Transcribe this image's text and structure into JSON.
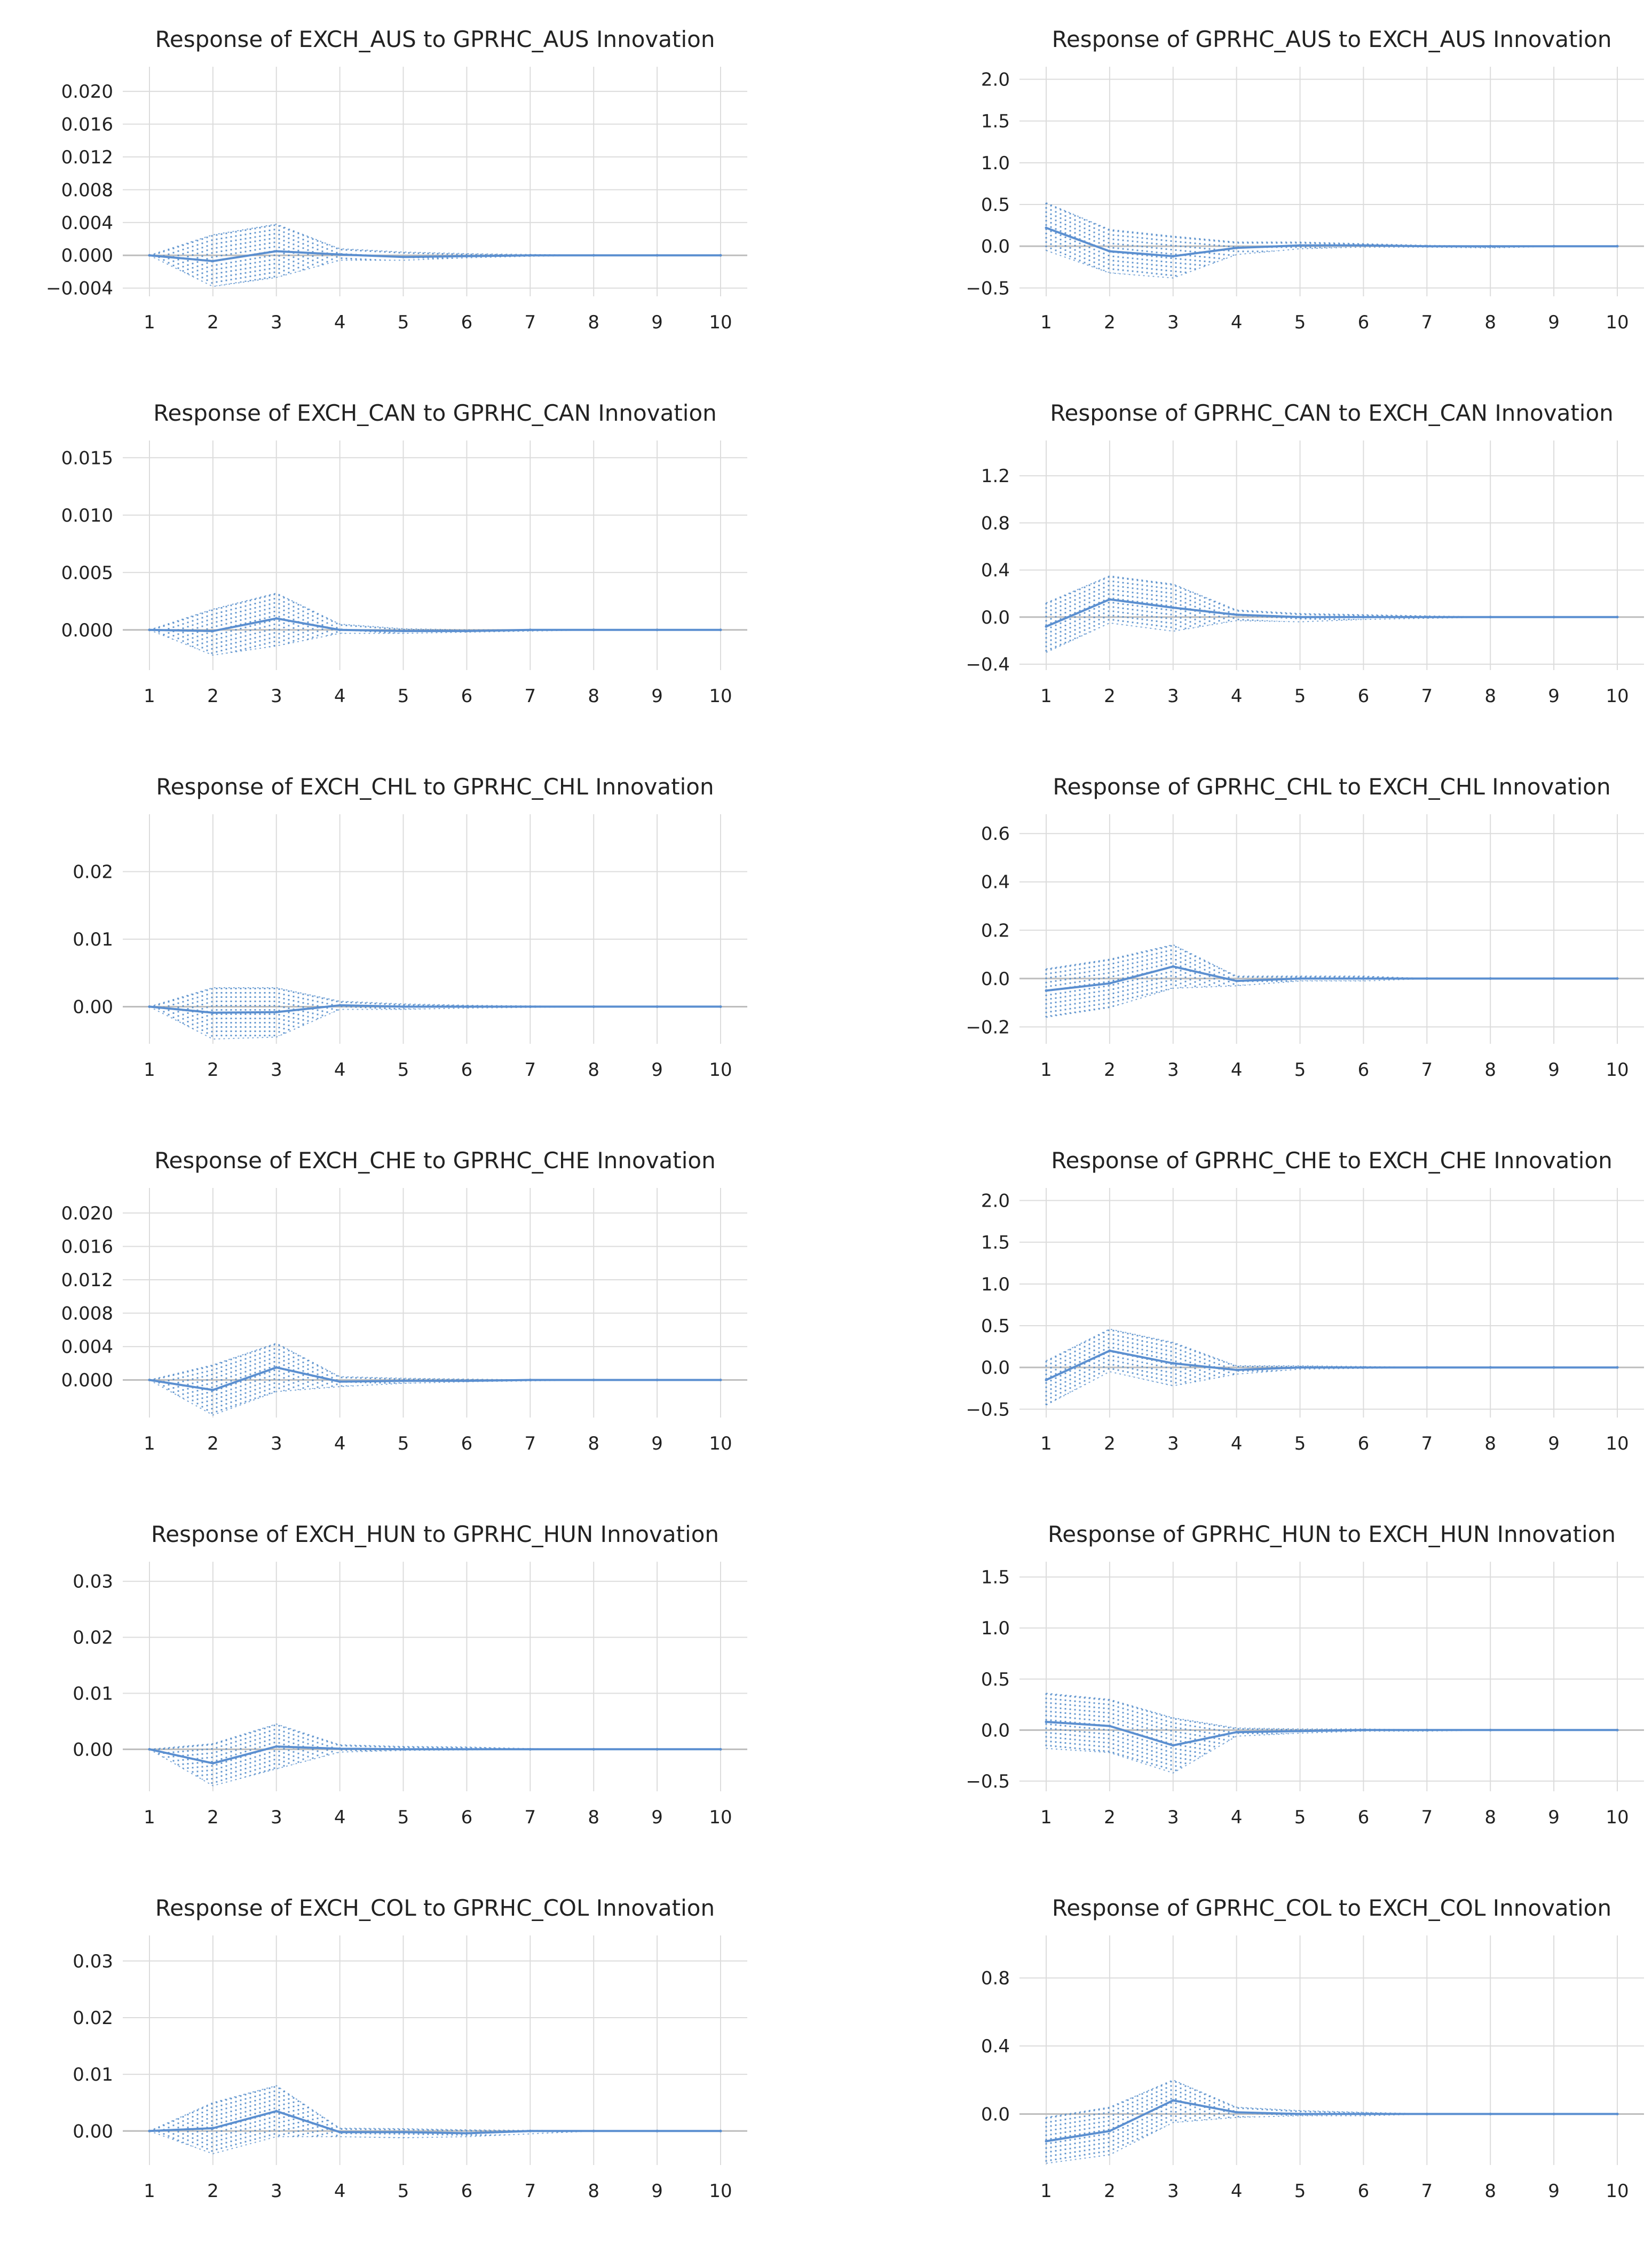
{
  "figure": {
    "colors": {
      "line": "#5b8fd0",
      "band": "#4a86c8",
      "grid": "#dcdcdc",
      "axis": "#bdbdbd"
    }
  },
  "chart_data": [
    {
      "type": "line",
      "title": "Response of EXCH_AUS to GPRHC_AUS Innovation",
      "x": [
        1,
        2,
        3,
        4,
        5,
        6,
        7,
        8,
        9,
        10
      ],
      "xticks": [
        "1",
        "2",
        "3",
        "4",
        "5",
        "6",
        "7",
        "8",
        "9",
        "10"
      ],
      "yticks": [
        -0.004,
        0.0,
        0.004,
        0.008,
        0.012,
        0.016,
        0.02
      ],
      "ytick_labels": [
        "−0.004",
        "0.000",
        "0.004",
        "0.008",
        "0.012",
        "0.016",
        "0.020"
      ],
      "ylim": [
        -0.005,
        0.023
      ],
      "series": [
        {
          "name": "response",
          "values": [
            0.0,
            -0.0007,
            0.0005,
            0.0001,
            -0.0002,
            -0.0001,
            0.0,
            0.0,
            0.0,
            0.0
          ]
        },
        {
          "name": "upper",
          "values": [
            0.0,
            0.0025,
            0.0038,
            0.0008,
            0.0004,
            0.0002,
            0.0001,
            0.0,
            0.0,
            0.0
          ]
        },
        {
          "name": "lower",
          "values": [
            0.0,
            -0.0038,
            -0.0027,
            -0.0006,
            -0.0006,
            -0.0003,
            -0.0001,
            0.0,
            0.0,
            0.0
          ]
        }
      ]
    },
    {
      "type": "line",
      "title": "Response of GPRHC_AUS to EXCH_AUS Innovation",
      "x": [
        1,
        2,
        3,
        4,
        5,
        6,
        7,
        8,
        9,
        10
      ],
      "xticks": [
        "1",
        "2",
        "3",
        "4",
        "5",
        "6",
        "7",
        "8",
        "9",
        "10"
      ],
      "yticks": [
        -0.5,
        0.0,
        0.5,
        1.0,
        1.5,
        2.0
      ],
      "ytick_labels": [
        "−0.5",
        "0.0",
        "0.5",
        "1.0",
        "1.5",
        "2.0"
      ],
      "ylim": [
        -0.6,
        2.15
      ],
      "series": [
        {
          "name": "response",
          "values": [
            0.22,
            -0.06,
            -0.12,
            -0.02,
            0.01,
            0.01,
            0.0,
            0.0,
            0.0,
            0.0
          ]
        },
        {
          "name": "upper",
          "values": [
            0.52,
            0.2,
            0.12,
            0.05,
            0.05,
            0.03,
            0.01,
            0.0,
            0.0,
            0.0
          ]
        },
        {
          "name": "lower",
          "values": [
            -0.05,
            -0.32,
            -0.38,
            -0.1,
            -0.03,
            -0.01,
            -0.01,
            -0.02,
            0.0,
            0.0
          ]
        }
      ]
    },
    {
      "type": "line",
      "title": "Response of EXCH_CAN to GPRHC_CAN Innovation",
      "x": [
        1,
        2,
        3,
        4,
        5,
        6,
        7,
        8,
        9,
        10
      ],
      "xticks": [
        "1",
        "2",
        "3",
        "4",
        "5",
        "6",
        "7",
        "8",
        "9",
        "10"
      ],
      "yticks": [
        0.0,
        0.005,
        0.01,
        0.015
      ],
      "ytick_labels": [
        "0.000",
        "0.005",
        "0.010",
        "0.015"
      ],
      "ylim": [
        -0.0035,
        0.0165
      ],
      "series": [
        {
          "name": "response",
          "values": [
            0.0,
            -0.0001,
            0.001,
            0.0,
            -0.0001,
            -0.0001,
            0.0,
            0.0,
            0.0,
            0.0
          ]
        },
        {
          "name": "upper",
          "values": [
            0.0,
            0.0018,
            0.0032,
            0.0005,
            0.0001,
            0.0,
            0.0,
            0.0,
            0.0,
            0.0
          ]
        },
        {
          "name": "lower",
          "values": [
            0.0,
            -0.0022,
            -0.0014,
            -0.0003,
            -0.0003,
            -0.0002,
            -0.0001,
            0.0,
            0.0,
            0.0
          ]
        }
      ]
    },
    {
      "type": "line",
      "title": "Response of GPRHC_CAN to EXCH_CAN Innovation",
      "x": [
        1,
        2,
        3,
        4,
        5,
        6,
        7,
        8,
        9,
        10
      ],
      "xticks": [
        "1",
        "2",
        "3",
        "4",
        "5",
        "6",
        "7",
        "8",
        "9",
        "10"
      ],
      "yticks": [
        -0.4,
        0.0,
        0.4,
        0.8,
        1.2
      ],
      "ytick_labels": [
        "−0.4",
        "0.0",
        "0.4",
        "0.8",
        "1.2"
      ],
      "ylim": [
        -0.45,
        1.5
      ],
      "series": [
        {
          "name": "response",
          "values": [
            -0.08,
            0.15,
            0.08,
            0.02,
            0.0,
            0.0,
            0.0,
            0.0,
            0.0,
            0.0
          ]
        },
        {
          "name": "upper",
          "values": [
            0.12,
            0.35,
            0.28,
            0.06,
            0.03,
            0.02,
            0.01,
            0.0,
            0.0,
            0.0
          ]
        },
        {
          "name": "lower",
          "values": [
            -0.3,
            -0.05,
            -0.12,
            -0.03,
            -0.04,
            -0.02,
            -0.01,
            0.0,
            0.0,
            0.0
          ]
        }
      ]
    },
    {
      "type": "line",
      "title": "Response of EXCH_CHL to GPRHC_CHL Innovation",
      "x": [
        1,
        2,
        3,
        4,
        5,
        6,
        7,
        8,
        9,
        10
      ],
      "xticks": [
        "1",
        "2",
        "3",
        "4",
        "5",
        "6",
        "7",
        "8",
        "9",
        "10"
      ],
      "yticks": [
        0.0,
        0.01,
        0.02
      ],
      "ytick_labels": [
        "0.00",
        "0.01",
        "0.02"
      ],
      "ylim": [
        -0.0055,
        0.0285
      ],
      "series": [
        {
          "name": "response",
          "values": [
            0.0,
            -0.0009,
            -0.0008,
            0.0002,
            0.0,
            0.0,
            0.0,
            0.0,
            0.0,
            0.0
          ]
        },
        {
          "name": "upper",
          "values": [
            0.0,
            0.0028,
            0.0028,
            0.0008,
            0.0004,
            0.0002,
            0.0001,
            0.0,
            0.0,
            0.0
          ]
        },
        {
          "name": "lower",
          "values": [
            0.0,
            -0.0048,
            -0.0045,
            -0.0004,
            -0.0004,
            -0.0002,
            -0.0001,
            0.0,
            0.0,
            0.0
          ]
        }
      ]
    },
    {
      "type": "line",
      "title": "Response of GPRHC_CHL to EXCH_CHL Innovation",
      "x": [
        1,
        2,
        3,
        4,
        5,
        6,
        7,
        8,
        9,
        10
      ],
      "xticks": [
        "1",
        "2",
        "3",
        "4",
        "5",
        "6",
        "7",
        "8",
        "9",
        "10"
      ],
      "yticks": [
        -0.2,
        0.0,
        0.2,
        0.4,
        0.6
      ],
      "ytick_labels": [
        "−0.2",
        "0.0",
        "0.2",
        "0.4",
        "0.6"
      ],
      "ylim": [
        -0.27,
        0.68
      ],
      "series": [
        {
          "name": "response",
          "values": [
            -0.05,
            -0.02,
            0.05,
            -0.01,
            0.0,
            0.0,
            0.0,
            0.0,
            0.0,
            0.0
          ]
        },
        {
          "name": "upper",
          "values": [
            0.04,
            0.08,
            0.14,
            0.01,
            0.01,
            0.01,
            0.0,
            0.0,
            0.0,
            0.0
          ]
        },
        {
          "name": "lower",
          "values": [
            -0.16,
            -0.12,
            -0.04,
            -0.03,
            -0.01,
            -0.01,
            0.0,
            0.0,
            0.0,
            0.0
          ]
        }
      ]
    },
    {
      "type": "line",
      "title": "Response of EXCH_CHE to GPRHC_CHE Innovation",
      "x": [
        1,
        2,
        3,
        4,
        5,
        6,
        7,
        8,
        9,
        10
      ],
      "xticks": [
        "1",
        "2",
        "3",
        "4",
        "5",
        "6",
        "7",
        "8",
        "9",
        "10"
      ],
      "yticks": [
        0.0,
        0.004,
        0.008,
        0.012,
        0.016,
        0.02
      ],
      "ytick_labels": [
        "0.000",
        "0.004",
        "0.008",
        "0.012",
        "0.016",
        "0.020"
      ],
      "ylim": [
        -0.0045,
        0.023
      ],
      "series": [
        {
          "name": "response",
          "values": [
            0.0,
            -0.0012,
            0.0015,
            -0.0002,
            -0.0001,
            -0.0001,
            0.0,
            0.0,
            0.0,
            0.0
          ]
        },
        {
          "name": "upper",
          "values": [
            0.0,
            0.0018,
            0.0044,
            0.0004,
            0.0002,
            0.0001,
            0.0,
            0.0,
            0.0,
            0.0
          ]
        },
        {
          "name": "lower",
          "values": [
            0.0,
            -0.0042,
            -0.0014,
            -0.0008,
            -0.0004,
            -0.0002,
            -0.0001,
            0.0,
            0.0,
            0.0
          ]
        }
      ]
    },
    {
      "type": "line",
      "title": "Response of GPRHC_CHE to EXCH_CHE Innovation",
      "x": [
        1,
        2,
        3,
        4,
        5,
        6,
        7,
        8,
        9,
        10
      ],
      "xticks": [
        "1",
        "2",
        "3",
        "4",
        "5",
        "6",
        "7",
        "8",
        "9",
        "10"
      ],
      "yticks": [
        -0.5,
        0.0,
        0.5,
        1.0,
        1.5,
        2.0
      ],
      "ytick_labels": [
        "−0.5",
        "0.0",
        "0.5",
        "1.0",
        "1.5",
        "2.0"
      ],
      "ylim": [
        -0.6,
        2.15
      ],
      "series": [
        {
          "name": "response",
          "values": [
            -0.15,
            0.2,
            0.05,
            -0.03,
            0.0,
            0.0,
            0.0,
            0.0,
            0.0,
            0.0
          ]
        },
        {
          "name": "upper",
          "values": [
            0.08,
            0.46,
            0.3,
            0.02,
            0.02,
            0.01,
            0.0,
            0.0,
            0.0,
            0.0
          ]
        },
        {
          "name": "lower",
          "values": [
            -0.45,
            -0.05,
            -0.22,
            -0.08,
            -0.02,
            -0.01,
            0.0,
            0.0,
            0.0,
            0.0
          ]
        }
      ]
    },
    {
      "type": "line",
      "title": "Response of EXCH_HUN to GPRHC_HUN Innovation",
      "x": [
        1,
        2,
        3,
        4,
        5,
        6,
        7,
        8,
        9,
        10
      ],
      "xticks": [
        "1",
        "2",
        "3",
        "4",
        "5",
        "6",
        "7",
        "8",
        "9",
        "10"
      ],
      "yticks": [
        0.0,
        0.01,
        0.02,
        0.03
      ],
      "ytick_labels": [
        "0.00",
        "0.01",
        "0.02",
        "0.03"
      ],
      "ylim": [
        -0.0075,
        0.0335
      ],
      "series": [
        {
          "name": "response",
          "values": [
            0.0,
            -0.0025,
            0.0005,
            0.0001,
            0.0,
            0.0,
            0.0,
            0.0,
            0.0,
            0.0
          ]
        },
        {
          "name": "upper",
          "values": [
            0.0,
            0.001,
            0.0045,
            0.0008,
            0.0005,
            0.0004,
            0.0001,
            0.0,
            0.0,
            0.0
          ]
        },
        {
          "name": "lower",
          "values": [
            0.0,
            -0.0065,
            -0.0035,
            -0.0005,
            -0.0002,
            -0.0001,
            0.0,
            0.0,
            0.0,
            0.0
          ]
        }
      ]
    },
    {
      "type": "line",
      "title": "Response of GPRHC_HUN to EXCH_HUN Innovation",
      "x": [
        1,
        2,
        3,
        4,
        5,
        6,
        7,
        8,
        9,
        10
      ],
      "xticks": [
        "1",
        "2",
        "3",
        "4",
        "5",
        "6",
        "7",
        "8",
        "9",
        "10"
      ],
      "yticks": [
        -0.5,
        0.0,
        0.5,
        1.0,
        1.5
      ],
      "ytick_labels": [
        "−0.5",
        "0.0",
        "0.5",
        "1.0",
        "1.5"
      ],
      "ylim": [
        -0.6,
        1.65
      ],
      "series": [
        {
          "name": "response",
          "values": [
            0.08,
            0.04,
            -0.15,
            -0.02,
            -0.01,
            0.0,
            0.0,
            0.0,
            0.0,
            0.0
          ]
        },
        {
          "name": "upper",
          "values": [
            0.36,
            0.3,
            0.12,
            0.02,
            0.01,
            0.01,
            0.0,
            0.0,
            0.0,
            0.0
          ]
        },
        {
          "name": "lower",
          "values": [
            -0.18,
            -0.22,
            -0.42,
            -0.06,
            -0.03,
            -0.01,
            -0.01,
            0.0,
            0.0,
            0.0
          ]
        }
      ]
    },
    {
      "type": "line",
      "title": "Response of EXCH_COL to GPRHC_COL Innovation",
      "x": [
        1,
        2,
        3,
        4,
        5,
        6,
        7,
        8,
        9,
        10
      ],
      "xticks": [
        "1",
        "2",
        "3",
        "4",
        "5",
        "6",
        "7",
        "8",
        "9",
        "10"
      ],
      "yticks": [
        0.0,
        0.01,
        0.02,
        0.03
      ],
      "ytick_labels": [
        "0.00",
        "0.01",
        "0.02",
        "0.03"
      ],
      "ylim": [
        -0.006,
        0.0345
      ],
      "series": [
        {
          "name": "response",
          "values": [
            0.0,
            0.0005,
            0.0035,
            -0.0002,
            -0.0002,
            -0.0004,
            0.0,
            0.0,
            0.0,
            0.0
          ]
        },
        {
          "name": "upper",
          "values": [
            0.0,
            0.005,
            0.008,
            0.0005,
            0.0004,
            0.0002,
            0.0001,
            0.0,
            0.0,
            0.0
          ]
        },
        {
          "name": "lower",
          "values": [
            0.0,
            -0.004,
            -0.001,
            -0.001,
            -0.0012,
            -0.001,
            -0.0005,
            0.0,
            0.0,
            0.0
          ]
        }
      ]
    },
    {
      "type": "line",
      "title": "Response of GPRHC_COL to EXCH_COL Innovation",
      "x": [
        1,
        2,
        3,
        4,
        5,
        6,
        7,
        8,
        9,
        10
      ],
      "xticks": [
        "1",
        "2",
        "3",
        "4",
        "5",
        "6",
        "7",
        "8",
        "9",
        "10"
      ],
      "yticks": [
        0.0,
        0.4,
        0.8
      ],
      "ytick_labels": [
        "0.0",
        "0.4",
        "0.8"
      ],
      "ylim": [
        -0.3,
        1.05
      ],
      "series": [
        {
          "name": "response",
          "values": [
            -0.16,
            -0.1,
            0.08,
            0.01,
            0.0,
            0.0,
            0.0,
            0.0,
            0.0,
            0.0
          ]
        },
        {
          "name": "upper",
          "values": [
            -0.02,
            0.04,
            0.2,
            0.04,
            0.02,
            0.01,
            0.0,
            0.0,
            0.0,
            0.0
          ]
        },
        {
          "name": "lower",
          "values": [
            -0.29,
            -0.24,
            -0.05,
            -0.02,
            -0.01,
            -0.01,
            0.0,
            0.0,
            0.0,
            0.0
          ]
        }
      ]
    }
  ]
}
